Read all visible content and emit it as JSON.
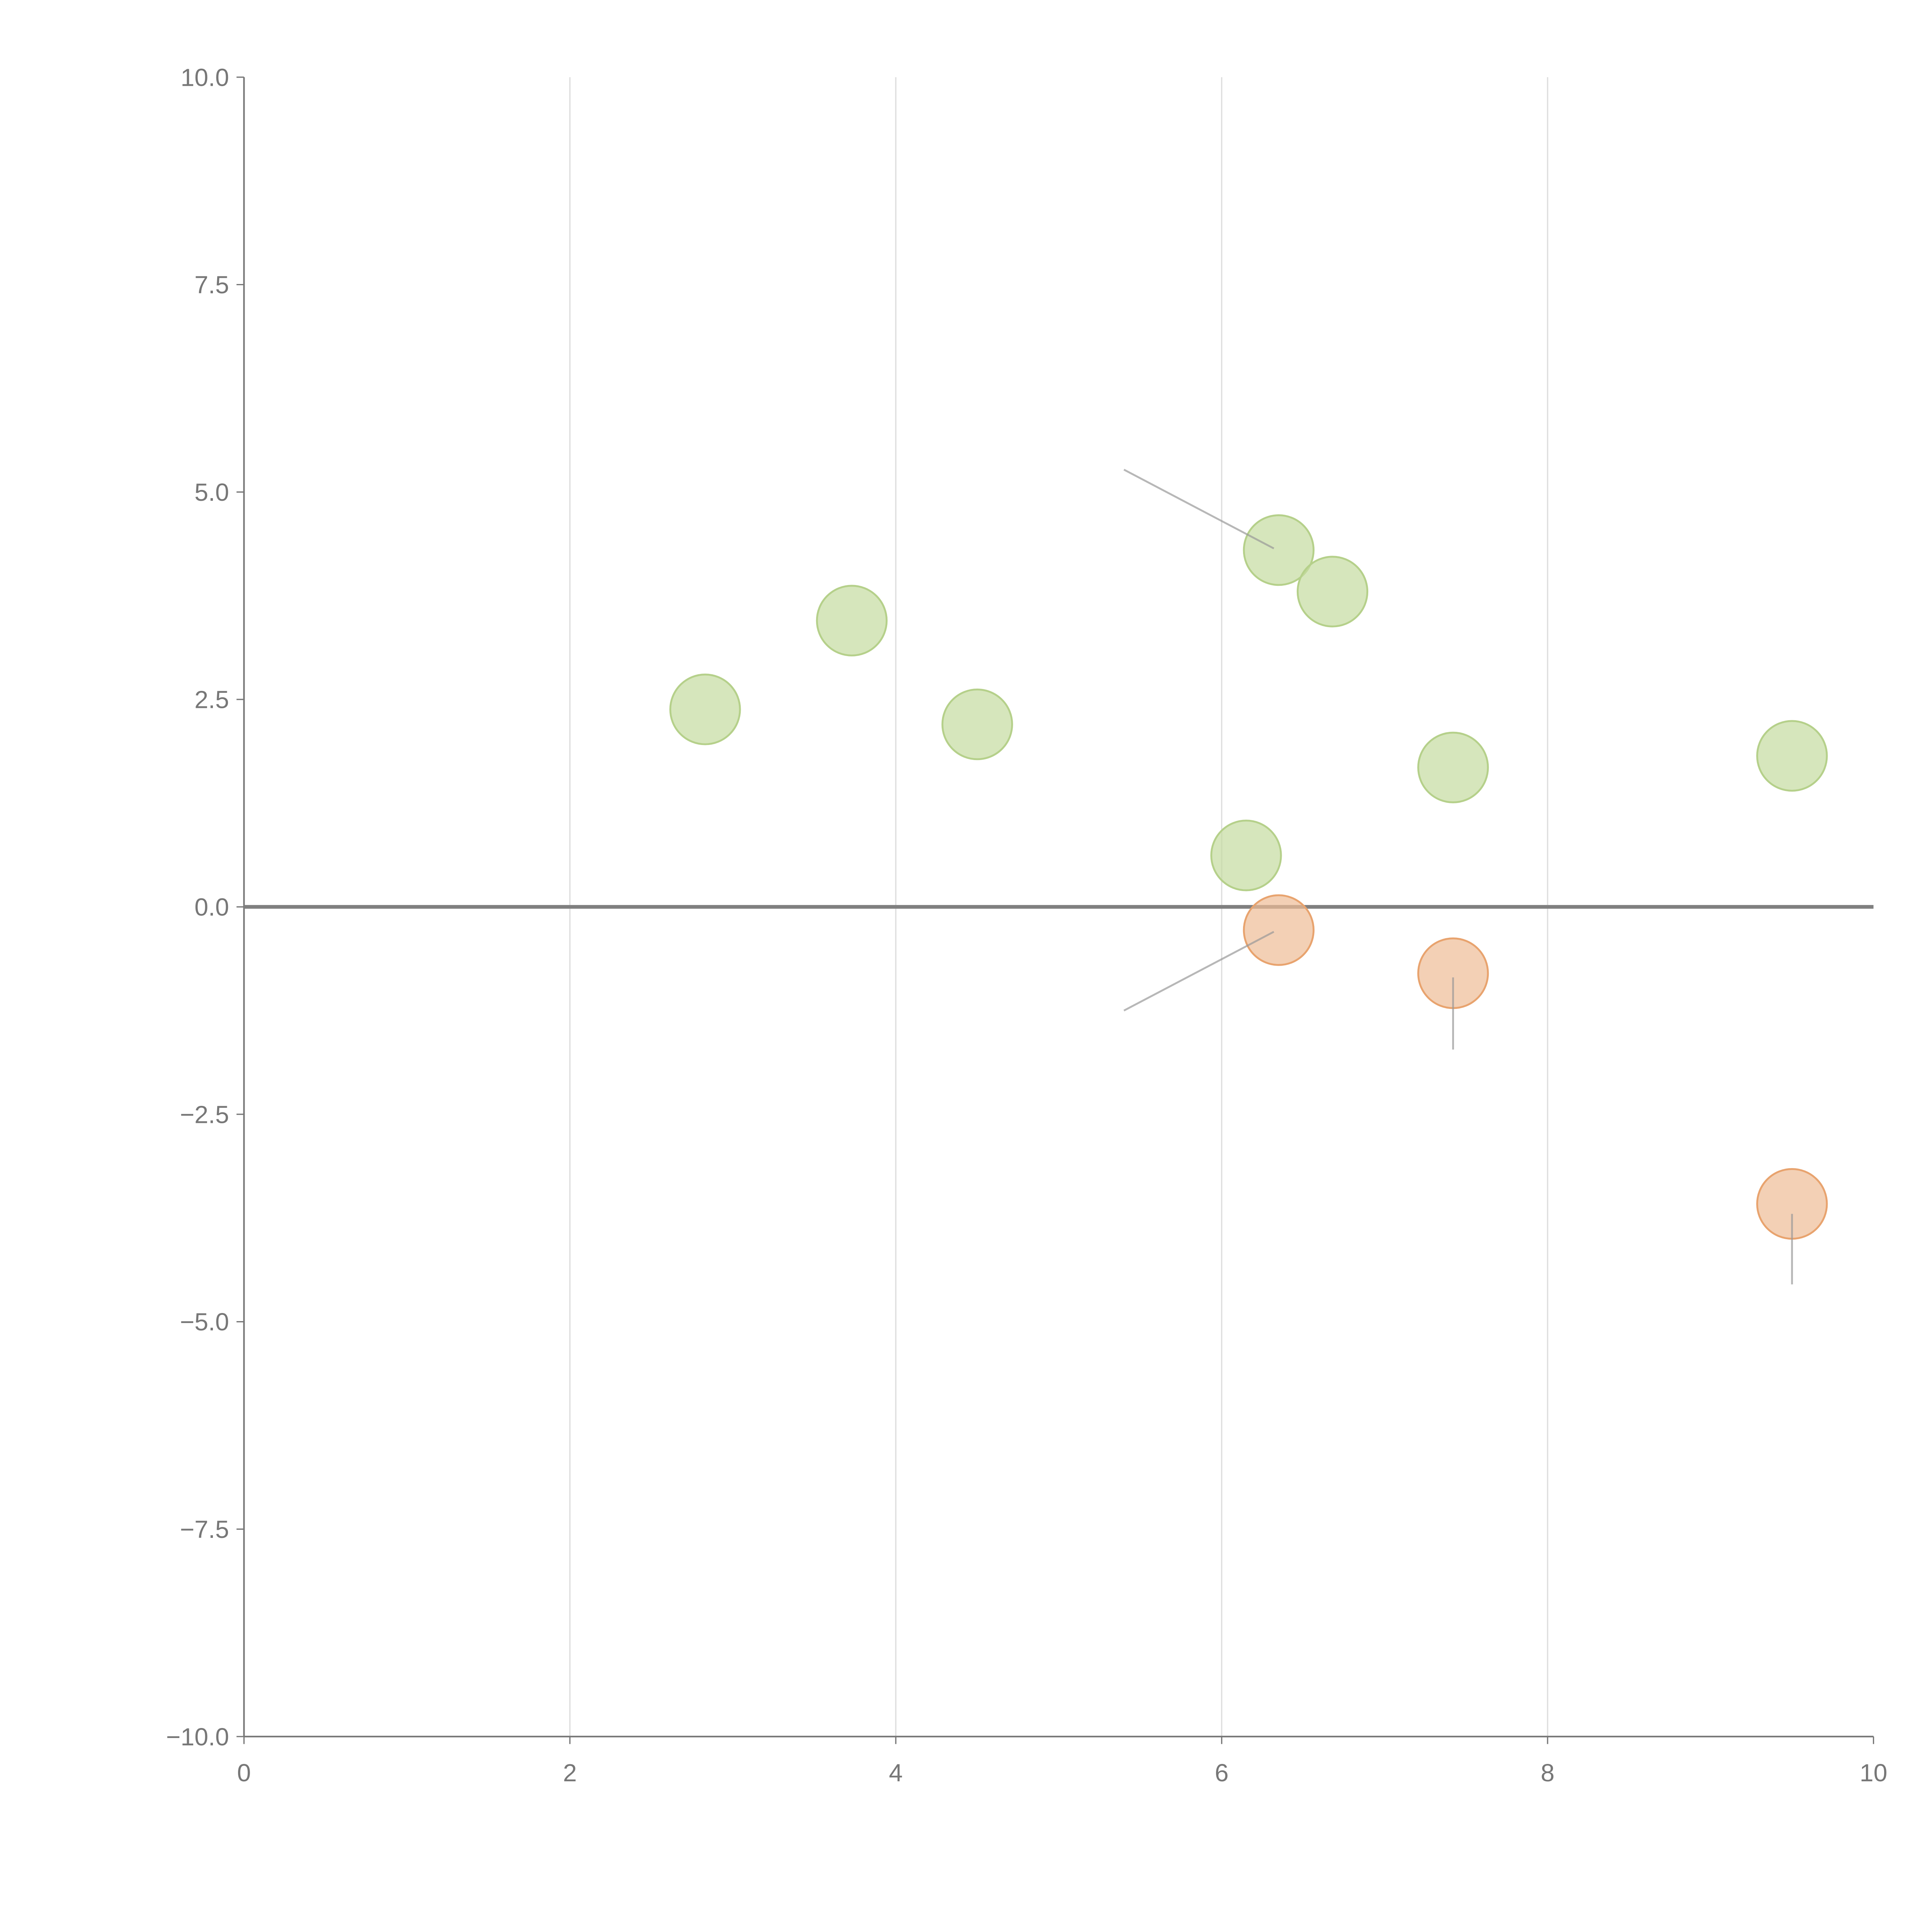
{
  "chart_data": {
    "type": "scatter",
    "title": "",
    "xlabel": "",
    "ylabel": "",
    "xlim": [
      0,
      10
    ],
    "ylim": [
      -10,
      10
    ],
    "x_ticks": [
      "0",
      "2",
      "4",
      "6",
      "8",
      "10"
    ],
    "x_tick_values": [
      0,
      2,
      4,
      6,
      8,
      10
    ],
    "y_ticks": [
      "10.0",
      "7.5",
      "5.0",
      "2.5",
      "0.0",
      "−2.5",
      "−5.0",
      "−7.5",
      "−10.0"
    ],
    "y_tick_values": [
      10,
      7.5,
      5,
      2.5,
      0,
      -2.5,
      -5,
      -7.5,
      -10
    ],
    "grid": "vertical",
    "series": [
      {
        "name": "positive",
        "color": "#c5dba0",
        "stroke": "#b5d08a",
        "points": [
          [
            2.83,
            2.38
          ],
          [
            3.73,
            3.45
          ],
          [
            4.5,
            2.2
          ],
          [
            6.35,
            4.3
          ],
          [
            6.68,
            3.8
          ],
          [
            7.42,
            1.68
          ],
          [
            9.5,
            1.82
          ],
          [
            6.15,
            0.62
          ]
        ]
      },
      {
        "name": "negative",
        "color": "#eebc96",
        "stroke": "#e8a36e",
        "points": [
          [
            6.35,
            -0.28
          ],
          [
            7.42,
            -0.8
          ],
          [
            9.5,
            -3.58
          ]
        ]
      }
    ],
    "leader_lines": [
      [
        [
          6.32,
          4.32
        ],
        [
          5.4,
          5.27
        ]
      ],
      [
        [
          6.32,
          -0.3
        ],
        [
          5.4,
          -1.25
        ]
      ],
      [
        [
          7.42,
          -0.85
        ],
        [
          7.42,
          -1.72
        ]
      ],
      [
        [
          9.5,
          -3.7
        ],
        [
          9.5,
          -4.55
        ]
      ]
    ]
  }
}
